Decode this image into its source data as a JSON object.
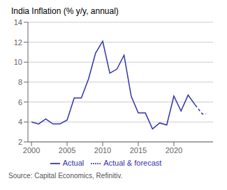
{
  "chart_data": {
    "type": "line",
    "title": "India Inflation (% y/y, annual)",
    "annotations": [
      "Source: Capital Economics, Refinitiv."
    ],
    "xlim": [
      1999.5,
      2025.5
    ],
    "xticks": [
      2000,
      2005,
      2010,
      2015,
      2020
    ],
    "ylim": [
      2,
      14
    ],
    "yticks": [
      2,
      4,
      6,
      8,
      10,
      12,
      14
    ],
    "grid": true,
    "legend": "bottom",
    "series": [
      {
        "name": "Actual",
        "color": "#3333aa",
        "line_style": "solid",
        "x": [
          2000,
          2001,
          2002,
          2003,
          2004,
          2005,
          2006,
          2007,
          2008,
          2009,
          2010,
          2011,
          2012,
          2013,
          2014,
          2015,
          2016,
          2017,
          2018,
          2019,
          2020,
          2021,
          2022,
          2023
        ],
        "values": [
          4.0,
          3.8,
          4.3,
          3.8,
          3.8,
          4.2,
          6.4,
          6.4,
          8.3,
          10.9,
          12.1,
          8.9,
          9.3,
          10.7,
          6.6,
          4.9,
          4.9,
          3.3,
          3.9,
          3.7,
          6.6,
          5.1,
          6.7,
          5.7
        ]
      },
      {
        "name": "Actual & forecast",
        "color": "#3333aa",
        "line_style": "dashed",
        "x": [
          2023,
          2024,
          2024.5
        ],
        "values": [
          5.7,
          4.8,
          4.8
        ]
      }
    ]
  }
}
